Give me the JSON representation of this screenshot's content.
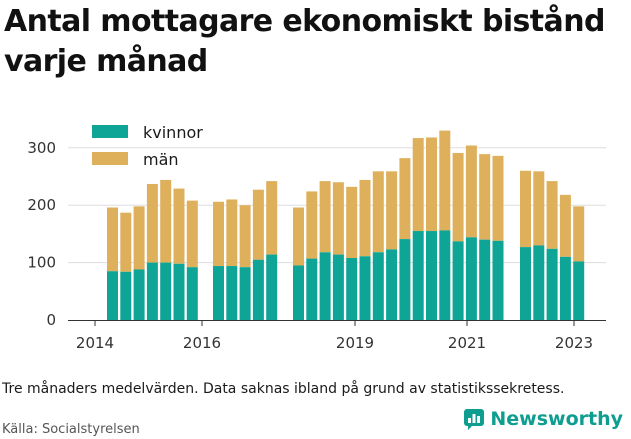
{
  "title": "Antal mottagare ekonomiskt bistånd varje månad",
  "note": "Tre månaders medelvärden. Data saknas ibland på grund av statistikssekretess.",
  "source": "Källa: Socialstyrelsen",
  "brand": {
    "name": "Newsworthy",
    "icon": "chart-bars-icon"
  },
  "colors": {
    "kvinnor": "#0ea597",
    "man": "#deb05c",
    "grid": "#dddddd",
    "axis": "#333333"
  },
  "chart_data": {
    "type": "bar",
    "stacked": true,
    "title": "Antal mottagare ekonomiskt bistånd varje månad",
    "xlabel": "",
    "ylabel": "",
    "ylim": [
      0,
      330
    ],
    "yticks": [
      0,
      100,
      200,
      300
    ],
    "xticks": [
      "2014",
      "2016",
      "2019",
      "2021",
      "2023"
    ],
    "grid": true,
    "legend": "top-left",
    "groups": [
      {
        "kvinnor": [
          85,
          84,
          88,
          100,
          100,
          98,
          92
        ],
        "total": [
          196,
          187,
          198,
          237,
          244,
          229,
          208
        ]
      },
      {
        "kvinnor": [
          94,
          94,
          92,
          105,
          114
        ],
        "total": [
          206,
          210,
          200,
          227,
          242
        ]
      },
      {
        "kvinnor": [
          95,
          107,
          118,
          114,
          108,
          111,
          118,
          123,
          141,
          155,
          155,
          156,
          137,
          144,
          140,
          138
        ],
        "total": [
          196,
          224,
          242,
          240,
          232,
          244,
          259,
          259,
          282,
          317,
          318,
          330,
          291,
          304,
          289,
          286
        ]
      },
      {
        "kvinnor": [
          127,
          130,
          124,
          110,
          102
        ],
        "total": [
          260,
          259,
          242,
          218,
          198
        ]
      }
    ],
    "series": [
      {
        "name": "kvinnor"
      },
      {
        "name": "män"
      }
    ]
  }
}
